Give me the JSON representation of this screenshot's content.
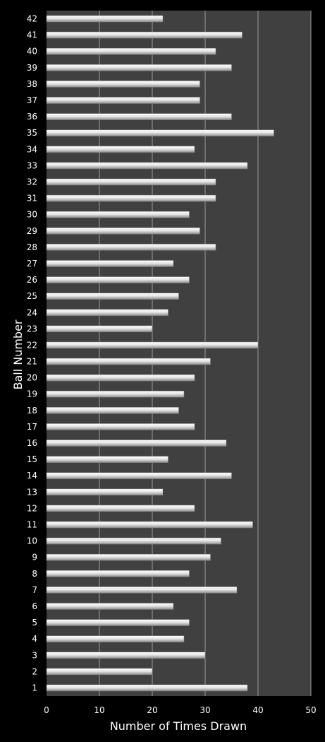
{
  "chart_data": {
    "type": "bar",
    "orientation": "horizontal",
    "title": "",
    "xlabel": "Number of Times Drawn",
    "ylabel": "Ball Number",
    "xlim": [
      0,
      50
    ],
    "x_ticks": [
      "0",
      "10",
      "20",
      "30",
      "40",
      "50"
    ],
    "grid": true,
    "categories": [
      "1",
      "2",
      "3",
      "4",
      "5",
      "6",
      "7",
      "8",
      "9",
      "10",
      "11",
      "12",
      "13",
      "14",
      "15",
      "16",
      "17",
      "18",
      "19",
      "20",
      "21",
      "22",
      "23",
      "24",
      "25",
      "26",
      "27",
      "28",
      "29",
      "30",
      "31",
      "32",
      "33",
      "34",
      "35",
      "36",
      "37",
      "38",
      "39",
      "40",
      "41",
      "42"
    ],
    "values": [
      38,
      20,
      30,
      26,
      27,
      24,
      36,
      27,
      31,
      33,
      39,
      28,
      22,
      35,
      23,
      34,
      28,
      25,
      26,
      28,
      31,
      40,
      20,
      23,
      25,
      27,
      24,
      32,
      29,
      27,
      32,
      32,
      38,
      28,
      43,
      35,
      29,
      29,
      35,
      32,
      37,
      22
    ],
    "colors": {
      "background": "#000000",
      "plot_area": "#404040",
      "gridline": "#9a9a9a",
      "bar": "#d9d9d9"
    }
  }
}
